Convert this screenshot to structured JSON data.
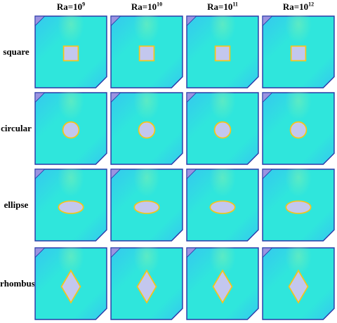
{
  "columns": [
    {
      "base": "Ra=10",
      "exp": "9"
    },
    {
      "base": "Ra=10",
      "exp": "10"
    },
    {
      "base": "Ra=10",
      "exp": "11"
    },
    {
      "base": "Ra=10",
      "exp": "12"
    }
  ],
  "rows": [
    "square",
    "circular",
    "ellipse",
    "rhombus"
  ],
  "colors": {
    "fluid_fill": "#2fe6dc",
    "fluid_edge": "#35c8ef",
    "cavity_border": "#2a3aa8",
    "corner_wedge": "#9b93e0",
    "obstacle_fill": "#c3c7ee",
    "obstacle_outline": "#f6c417",
    "plume": "#7ff0b0"
  }
}
